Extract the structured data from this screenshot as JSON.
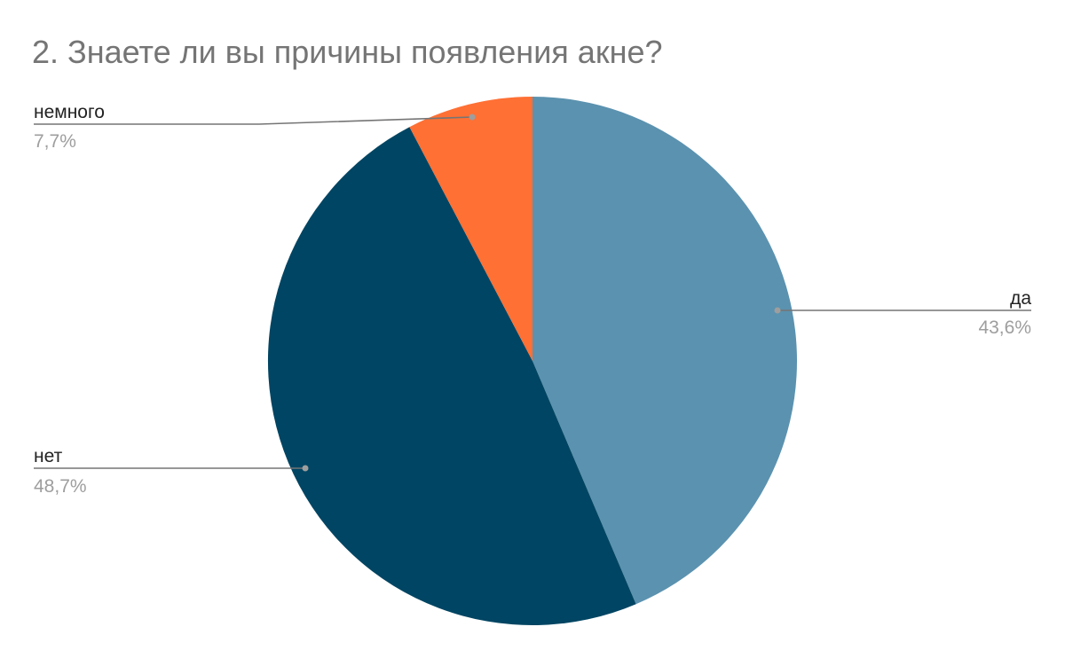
{
  "chart_data": {
    "type": "pie",
    "title": "2. Знаете ли вы причины появления акне?",
    "slices": [
      {
        "label": "да",
        "value": 43.6,
        "value_label": "43,6%",
        "color": "#5b92af"
      },
      {
        "label": "нет",
        "value": 48.7,
        "value_label": "48,7%",
        "color": "#004563"
      },
      {
        "label": "немного",
        "value": 7.7,
        "value_label": "7,7%",
        "color": "#ff7034"
      }
    ],
    "legend": "none",
    "label_style": "callout"
  }
}
